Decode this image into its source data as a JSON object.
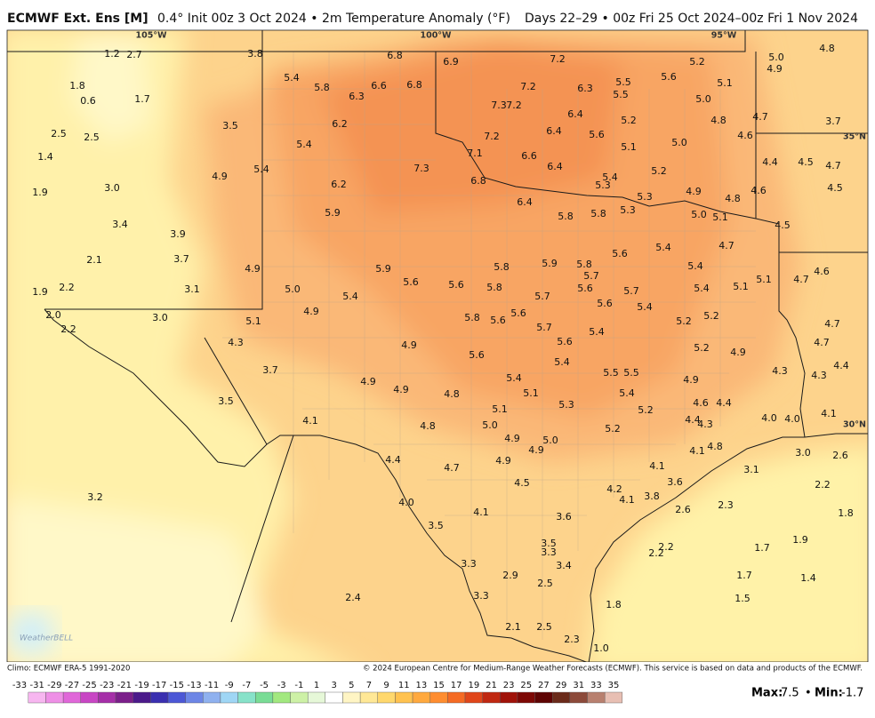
{
  "header": {
    "model": "ECMWF Ext. Ens [M]",
    "info": "0.4° Init 00z 3 Oct 2024 • 2m Temperature Anomaly (°F)",
    "period": "Days 22–29 • 00z Fri 25 Oct 2024–00z Fri 1 Nov 2024"
  },
  "axes": {
    "lon": [
      "105°W",
      "100°W",
      "95°W"
    ],
    "lat": [
      "35°N",
      "30°N"
    ]
  },
  "map": {
    "labels": [
      [
        "1.2",
        "2.7",
        "3.8",
        "6.8",
        "6.9",
        "7.2",
        "5.2",
        "5.0",
        "4.8",
        "4.9"
      ],
      [
        "1.8",
        "0.6",
        "1.7",
        "5.4",
        "5.8",
        "6.3",
        "6.6",
        "6.8",
        "7.2",
        "6.3",
        "5.5",
        "5.5",
        "5.6",
        "5.1",
        "5.0"
      ],
      [
        "7.3",
        "7.2",
        "6.4",
        "5.2",
        "4.8",
        "4.7",
        "3.7"
      ],
      [
        "2.5",
        "2.5",
        "3.5",
        "6.2",
        "5.6",
        "6.4",
        "7.2",
        "5.1",
        "5.0",
        "4.6"
      ],
      [
        "1.4",
        "5.4",
        "7.1",
        "6.6",
        "4.4",
        "4.5",
        "4.7"
      ],
      [
        "4.9",
        "5.4",
        "7.3",
        "6.8",
        "6.4",
        "5.4",
        "5.2",
        "5.3"
      ],
      [
        "1.9",
        "3.0",
        "6.2",
        "5.3",
        "4.9",
        "4.8",
        "4.6",
        "4.5"
      ],
      [
        "6.4",
        "5.9",
        "5.8",
        "5.8",
        "5.3",
        "5.0",
        "5.1",
        "4.5"
      ],
      [
        "3.4",
        "3.9",
        "5.4",
        "4.7"
      ],
      [
        "2.1",
        "3.7",
        "4.9",
        "5.9",
        "5.8",
        "5.9",
        "5.8",
        "5.6",
        "5.4",
        "4.6"
      ],
      [
        "1.9",
        "2.2",
        "3.1",
        "5.0",
        "5.4",
        "5.6",
        "5.6",
        "5.8",
        "5.7",
        "5.7",
        "5.6",
        "5.7",
        "5.4",
        "5.1",
        "5.1",
        "4.7"
      ],
      [
        "2.0",
        "3.0",
        "4.9",
        "5.6",
        "5.4",
        "5.2",
        "5.1",
        "5.8",
        "5.6",
        "5.6",
        "5.2",
        "4.7"
      ],
      [
        "2.2",
        "4.3",
        "5.7",
        "5.4",
        "5.6",
        "5.2",
        "4.9",
        "4.9",
        "4.7"
      ],
      [
        "5.6",
        "5.4",
        "3.7",
        "4.3",
        "4.4",
        "4.3"
      ],
      [
        "4.9",
        "5.4",
        "5.5",
        "5.5",
        "4.9",
        "4.9",
        "4.8",
        "5.1",
        "5.4",
        "4.6",
        "4.4",
        "3.5"
      ],
      [
        "5.3",
        "5.1",
        "5.2",
        "4.1",
        "4.8",
        "5.0",
        "4.0",
        "4.0",
        "4.1",
        "4.4",
        "4.3",
        "5.2"
      ],
      [
        "4.9",
        "5.0",
        "4.9",
        "4.1",
        "4.8",
        "3.0",
        "2.6"
      ],
      [
        "4.4",
        "4.9",
        "4.7",
        "4.1",
        "3.1"
      ],
      [
        "4.5",
        "3.6",
        "4.2",
        "2.2"
      ],
      [
        "3.2",
        "4.0",
        "4.1",
        "3.8",
        "4.1",
        "2.6",
        "2.3",
        "1.8"
      ],
      [
        "3.6",
        "3.5",
        "3.5",
        "3.3",
        "2.2",
        "2.2",
        "1.7",
        "1.9"
      ],
      [
        "3.3",
        "3.4",
        "2.9",
        "2.5",
        "1.7",
        "1.4"
      ],
      [
        "2.4",
        "3.3",
        "1.8",
        "1.5"
      ],
      [
        "2.1",
        "2.5",
        "2.3",
        "1.0"
      ]
    ],
    "logo": "WeatherBELL"
  },
  "footer": {
    "climo": "Climo: ECMWF ERA-5 1991-2020",
    "copyright": "© 2024 European Centre for Medium-Range Weather Forecasts (ECMWF). This service is based on data and products of the ECMWF."
  },
  "colorbar": {
    "ticks": [
      -33,
      -31,
      -29,
      -27,
      -25,
      -23,
      -21,
      -19,
      -17,
      -15,
      -13,
      -11,
      -9,
      -7,
      -5,
      -3,
      -1,
      1,
      3,
      5,
      7,
      9,
      11,
      13,
      15,
      17,
      19,
      21,
      23,
      25,
      27,
      29,
      31,
      33,
      35
    ]
  },
  "stats": {
    "max_label": "Max:",
    "max": "7.5",
    "sep": "•",
    "min_label": "Min:",
    "min": "-1.7"
  }
}
